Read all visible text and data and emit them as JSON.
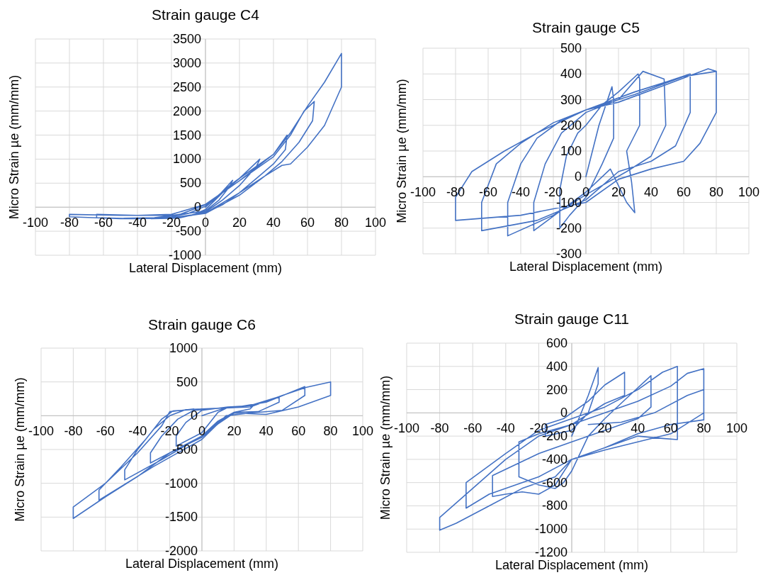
{
  "chart_data": [
    {
      "type": "line",
      "title": "Strain gauge C4",
      "xlabel": "Lateral Displacement (mm)",
      "ylabel": "Micro Strain µe (mm/mm)",
      "xlim": [
        -100,
        100
      ],
      "xticks": [
        -100,
        -80,
        -60,
        -40,
        -20,
        0,
        20,
        40,
        60,
        80,
        100
      ],
      "ylim": [
        -1000,
        3500
      ],
      "yticks": [
        -1000,
        -500,
        0,
        500,
        1000,
        1500,
        2000,
        2500,
        3000,
        3500
      ],
      "grid": true,
      "series": [
        {
          "color": "#4472c4",
          "x": [
            0,
            8,
            16,
            14,
            8,
            0,
            -10,
            -16,
            -8,
            0,
            10,
            20,
            32,
            30,
            20,
            10,
            0,
            -16,
            -32,
            -20,
            -10,
            0,
            16,
            32,
            40,
            48,
            47,
            40,
            30,
            20,
            10,
            0,
            -20,
            -48,
            -30,
            -15,
            0,
            20,
            40,
            50,
            58,
            64,
            63,
            55,
            45,
            35,
            20,
            0,
            -20,
            -40,
            -64,
            -64,
            -40,
            -20,
            0,
            20,
            40,
            50,
            60,
            70,
            80,
            80,
            70,
            60,
            50,
            45,
            35,
            20,
            0,
            -20,
            -50,
            -80,
            -80,
            -50,
            -20,
            0
          ],
          "values": [
            0,
            250,
            560,
            420,
            150,
            -80,
            -180,
            -210,
            -170,
            -50,
            300,
            600,
            1000,
            850,
            450,
            150,
            -100,
            -230,
            -240,
            -200,
            -130,
            20,
            500,
            900,
            1100,
            1500,
            1200,
            900,
            600,
            300,
            50,
            -120,
            -230,
            -230,
            -220,
            -150,
            50,
            550,
            1050,
            1500,
            2000,
            2200,
            1800,
            1350,
            950,
            650,
            300,
            -120,
            -220,
            -240,
            -220,
            -150,
            -170,
            -150,
            60,
            550,
            1100,
            1550,
            2100,
            2600,
            3200,
            2500,
            1700,
            1250,
            900,
            870,
            650,
            250,
            -130,
            -220,
            -240,
            -200,
            -150,
            -170,
            -170,
            -80
          ]
        }
      ]
    },
    {
      "type": "line",
      "title": "Strain gauge C5",
      "xlabel": "Lateral Displacement (mm)",
      "ylabel": "Micro Strain µe (mm/mm)",
      "xlim": [
        -100,
        100
      ],
      "xticks": [
        -100,
        -80,
        -60,
        -40,
        -20,
        0,
        20,
        40,
        60,
        80,
        100
      ],
      "ylim": [
        -300,
        500
      ],
      "yticks": [
        -300,
        -200,
        -100,
        0,
        100,
        200,
        300,
        400,
        500
      ],
      "grid": true,
      "series": [
        {
          "color": "#4472c4",
          "x": [
            0,
            8,
            16,
            17,
            17,
            10,
            0,
            -10,
            -16,
            -16,
            -12,
            -5,
            0,
            10,
            20,
            32,
            33,
            33,
            25,
            28,
            30,
            25,
            15,
            0,
            -15,
            -32,
            -32,
            -25,
            -15,
            0,
            20,
            35,
            48,
            49,
            40,
            25,
            0,
            -20,
            -48,
            -48,
            -40,
            -30,
            -15,
            0,
            30,
            50,
            64,
            64,
            55,
            40,
            20,
            0,
            -30,
            -64,
            -64,
            -55,
            -40,
            -20,
            0,
            30,
            60,
            80,
            80,
            70,
            60,
            40,
            20,
            0,
            -40,
            -80,
            -80,
            -70,
            -50,
            -30,
            -10,
            0,
            20,
            50,
            75,
            80
          ],
          "values": [
            0,
            200,
            350,
            300,
            150,
            50,
            -80,
            -150,
            -200,
            -50,
            80,
            170,
            200,
            280,
            330,
            400,
            380,
            200,
            100,
            -20,
            -140,
            -100,
            30,
            -60,
            -130,
            -210,
            -100,
            50,
            170,
            250,
            300,
            410,
            380,
            200,
            80,
            20,
            -70,
            -150,
            -230,
            -100,
            50,
            150,
            220,
            260,
            330,
            370,
            400,
            250,
            120,
            60,
            20,
            -90,
            -170,
            -210,
            -100,
            50,
            130,
            210,
            260,
            320,
            390,
            410,
            250,
            130,
            60,
            30,
            -10,
            -100,
            -150,
            -170,
            -80,
            20,
            100,
            170,
            230,
            260,
            290,
            360,
            420,
            410
          ]
        }
      ]
    },
    {
      "type": "line",
      "title": "Strain gauge C6",
      "xlabel": "Lateral Displacement (mm)",
      "ylabel": "Micro Strain µe (mm/mm)",
      "xlim": [
        -100,
        100
      ],
      "xticks": [
        -100,
        -80,
        -60,
        -40,
        -20,
        0,
        20,
        40,
        60,
        80,
        100
      ],
      "ylim": [
        -2000,
        1000
      ],
      "yticks": [
        -2000,
        -1500,
        -1000,
        -500,
        0,
        500,
        1000
      ],
      "grid": true,
      "series": [
        {
          "color": "#4472c4",
          "x": [
            0,
            10,
            16,
            10,
            0,
            -16,
            -16,
            -10,
            0,
            16,
            32,
            30,
            20,
            10,
            0,
            -32,
            -32,
            -25,
            -15,
            -5,
            10,
            30,
            48,
            48,
            35,
            20,
            10,
            0,
            -25,
            -48,
            -48,
            -40,
            -30,
            -20,
            -10,
            20,
            40,
            64,
            64,
            50,
            30,
            15,
            0,
            -30,
            -64,
            -64,
            -50,
            -35,
            -25,
            -18,
            0,
            30,
            50,
            65,
            80,
            80,
            60,
            40,
            20,
            10,
            0,
            -20,
            -40,
            -60,
            -80,
            -80,
            -60,
            -40,
            -25,
            -20,
            -5
          ],
          "values": [
            0,
            80,
            120,
            50,
            -250,
            -450,
            -300,
            -100,
            80,
            130,
            150,
            100,
            50,
            -80,
            -300,
            -700,
            -550,
            -300,
            -50,
            80,
            110,
            150,
            280,
            200,
            60,
            50,
            -100,
            -300,
            -650,
            -950,
            -800,
            -500,
            -200,
            0,
            90,
            120,
            200,
            430,
            300,
            80,
            40,
            0,
            -350,
            -750,
            -1250,
            -1100,
            -750,
            -350,
            -50,
            70,
            100,
            130,
            300,
            420,
            500,
            300,
            130,
            20,
            40,
            -120,
            -320,
            -550,
            -900,
            -1200,
            -1520,
            -1350,
            -1000,
            -550,
            -150,
            60,
            100
          ]
        }
      ]
    },
    {
      "type": "line",
      "title": "Strain gauge C11",
      "xlabel": "Lateral Displacement (mm)",
      "ylabel": "Micro Strain µe (mm/mm)",
      "xlim": [
        -100,
        100
      ],
      "xticks": [
        -100,
        -80,
        -60,
        -40,
        -20,
        0,
        20,
        40,
        60,
        80,
        100
      ],
      "ylim": [
        -1200,
        600
      ],
      "yticks": [
        -1200,
        -1000,
        -800,
        -600,
        -400,
        -200,
        0,
        200,
        400,
        600
      ],
      "grid": true,
      "series": [
        {
          "color": "#4472c4",
          "x": [
            0,
            10,
            16,
            16,
            10,
            0,
            -16,
            -16,
            -5,
            10,
            20,
            32,
            32,
            20,
            0,
            -20,
            -32,
            -32,
            -20,
            -10,
            -5,
            0,
            10,
            20,
            35,
            48,
            48,
            40,
            20,
            0,
            -20,
            -48,
            -48,
            -40,
            -30,
            -20,
            -10,
            0,
            20,
            40,
            55,
            64,
            64,
            55,
            40,
            20,
            0,
            -20,
            -40,
            -64,
            -64,
            -50,
            -20,
            0,
            20,
            40,
            60,
            80,
            80,
            70,
            60,
            40,
            20,
            0,
            -20,
            -40,
            -60,
            -80,
            -80,
            -70,
            -50,
            -30,
            -10,
            0,
            20,
            40,
            60,
            80,
            80,
            70,
            50,
            30,
            10
          ],
          "values": [
            -200,
            150,
            390,
            250,
            0,
            -150,
            -200,
            -100,
            -50,
            100,
            240,
            350,
            150,
            80,
            -100,
            -180,
            -250,
            -550,
            -620,
            -650,
            -600,
            -500,
            -200,
            -50,
            150,
            320,
            50,
            -50,
            -150,
            -250,
            -350,
            -540,
            -720,
            -700,
            -680,
            -700,
            -620,
            -400,
            -300,
            -200,
            -220,
            -230,
            400,
            350,
            200,
            50,
            -50,
            -150,
            -350,
            -600,
            -820,
            -700,
            -550,
            -400,
            -300,
            -180,
            -100,
            -60,
            380,
            340,
            230,
            100,
            0,
            -100,
            -200,
            -400,
            -650,
            -900,
            -1010,
            -950,
            -800,
            -650,
            -550,
            -400,
            -320,
            -250,
            -180,
            0,
            200,
            150,
            0,
            -80,
            -100
          ]
        }
      ]
    }
  ]
}
